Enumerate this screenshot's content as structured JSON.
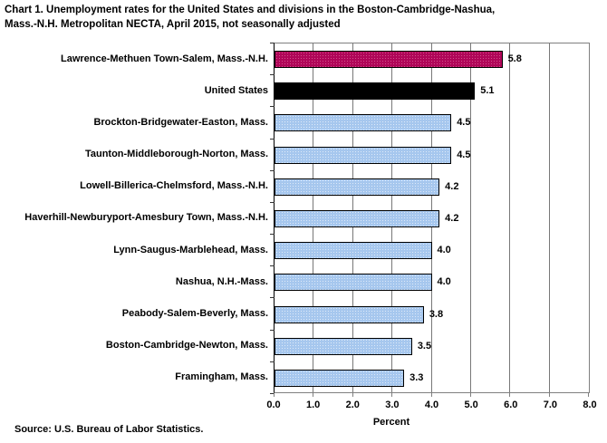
{
  "title": {
    "line1": "Chart 1. Unemployment rates for the United States and divisions in the Boston-Cambridge-Nashua,",
    "line2": "Mass.-N.H. Metropolitan NECTA, April 2015, not seasonally adjusted"
  },
  "source": "Source: U.S. Bureau of Labor Statistics.",
  "chart_data": {
    "type": "bar",
    "orientation": "horizontal",
    "title": "Chart 1. Unemployment rates for the United States and divisions in the Boston-Cambridge-Nashua, Mass.-N.H. Metropolitan NECTA, April 2015, not seasonally adjusted",
    "categories": [
      "Lawrence-Methuen Town-Salem, Mass.-N.H.",
      "United States",
      "Brockton-Bridgewater-Easton, Mass.",
      "Taunton-Middleborough-Norton, Mass.",
      "Lowell-Billerica-Chelmsford, Mass.-N.H.",
      "Haverhill-Newburyport-Amesbury Town, Mass.-N.H.",
      "Lynn-Saugus-Marblehead, Mass.",
      "Nashua, N.H.-Mass.",
      "Peabody-Salem-Beverly, Mass.",
      "Boston-Cambridge-Newton, Mass.",
      "Framingham, Mass."
    ],
    "values": [
      5.8,
      5.1,
      4.5,
      4.5,
      4.2,
      4.2,
      4.0,
      4.0,
      3.8,
      3.5,
      3.3
    ],
    "value_labels": [
      "5.8",
      "5.1",
      "4.5",
      "4.5",
      "4.2",
      "4.2",
      "4.0",
      "4.0",
      "3.8",
      "3.5",
      "3.3"
    ],
    "bar_styles": [
      "highlight",
      "us",
      "division",
      "division",
      "division",
      "division",
      "division",
      "division",
      "division",
      "division",
      "division"
    ],
    "xlabel": "Percent",
    "ylabel": "",
    "xlim": [
      0,
      8
    ],
    "xticks": [
      "0.0",
      "1.0",
      "2.0",
      "3.0",
      "4.0",
      "5.0",
      "6.0",
      "7.0",
      "8.0"
    ],
    "grid": "vertical",
    "legend": "none",
    "colors": {
      "highlight_bar": "#b00558",
      "us_bar": "#000000",
      "division_bar": "#a6c7ee",
      "gridline": "#787878",
      "text": "#000000",
      "background": "#ffffff"
    }
  }
}
